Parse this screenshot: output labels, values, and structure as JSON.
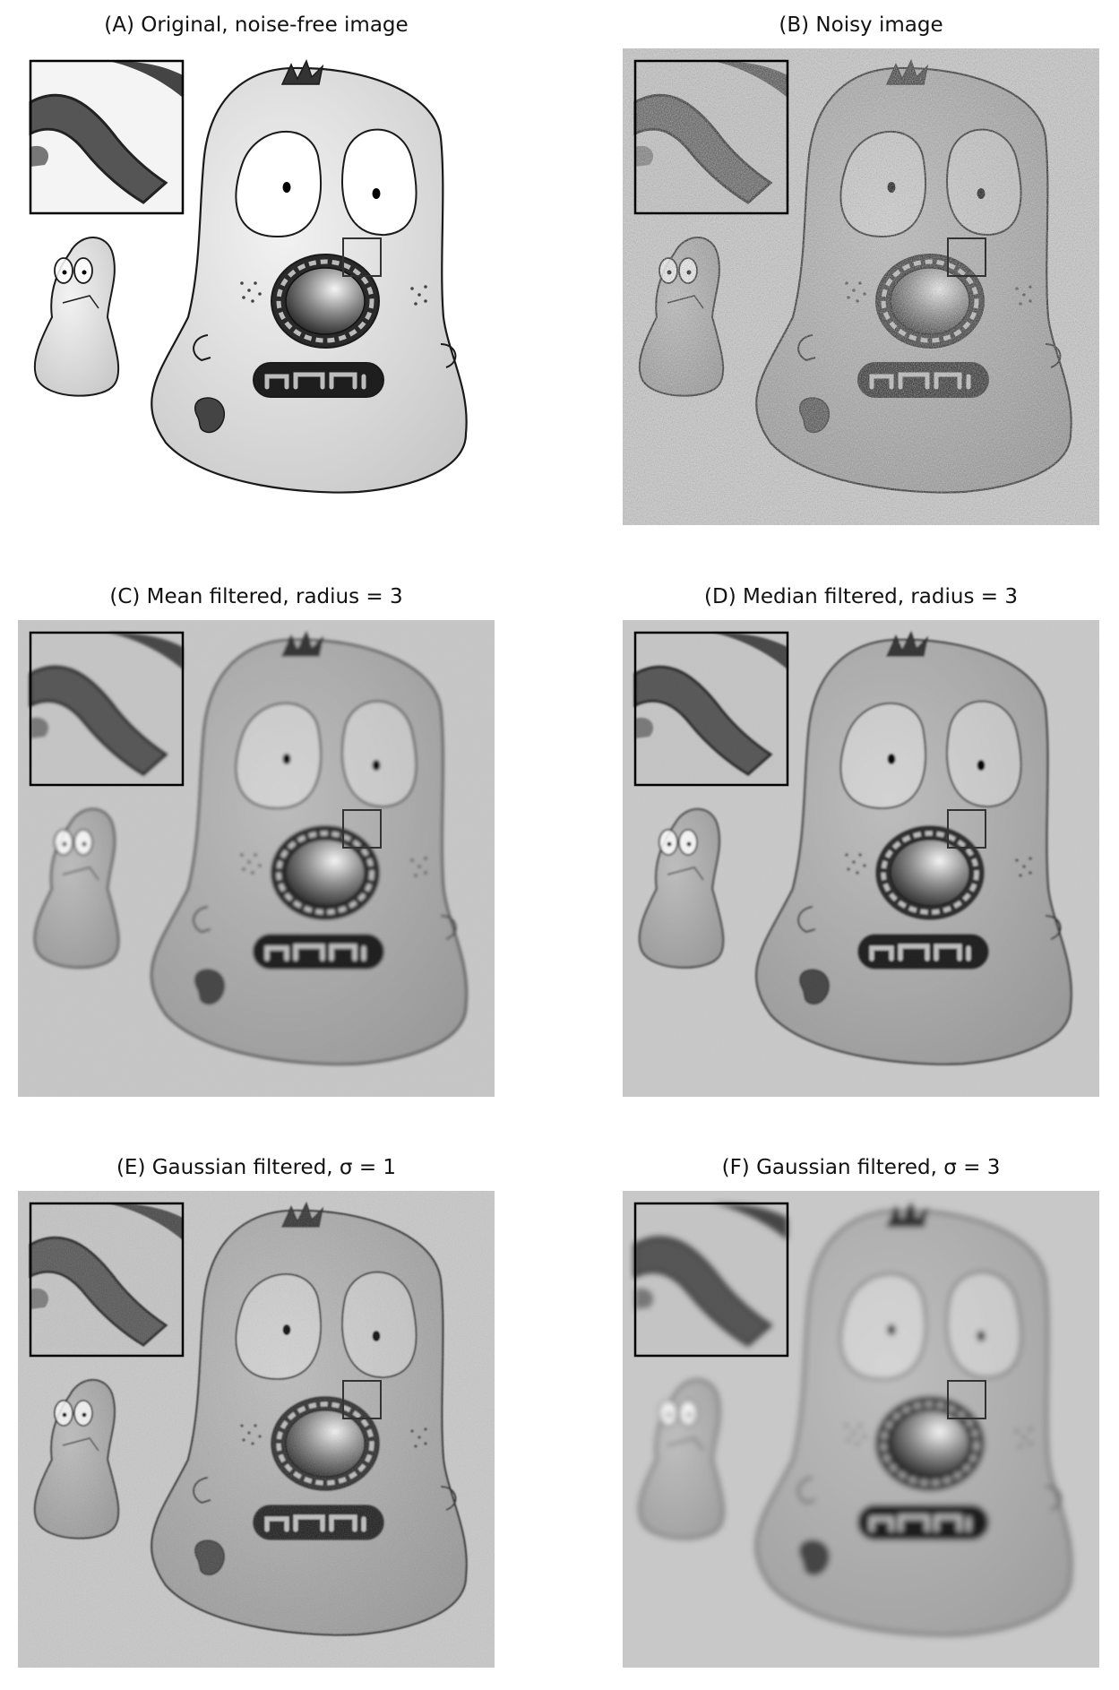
{
  "figure": {
    "panels": [
      {
        "id": "A",
        "title": "(A) Original, noise-free image",
        "variant": "original"
      },
      {
        "id": "B",
        "title": "(B) Noisy image",
        "variant": "noisy"
      },
      {
        "id": "C",
        "title": "(C) Mean filtered, radius = 3",
        "variant": "mean"
      },
      {
        "id": "D",
        "title": "(D) Median filtered, radius = 3",
        "variant": "median"
      },
      {
        "id": "E",
        "title": "(E) Gaussian filtered, σ = 1",
        "variant": "gauss1"
      },
      {
        "id": "F",
        "title": "(F) Gaussian filtered, σ = 3",
        "variant": "gauss3"
      }
    ]
  }
}
